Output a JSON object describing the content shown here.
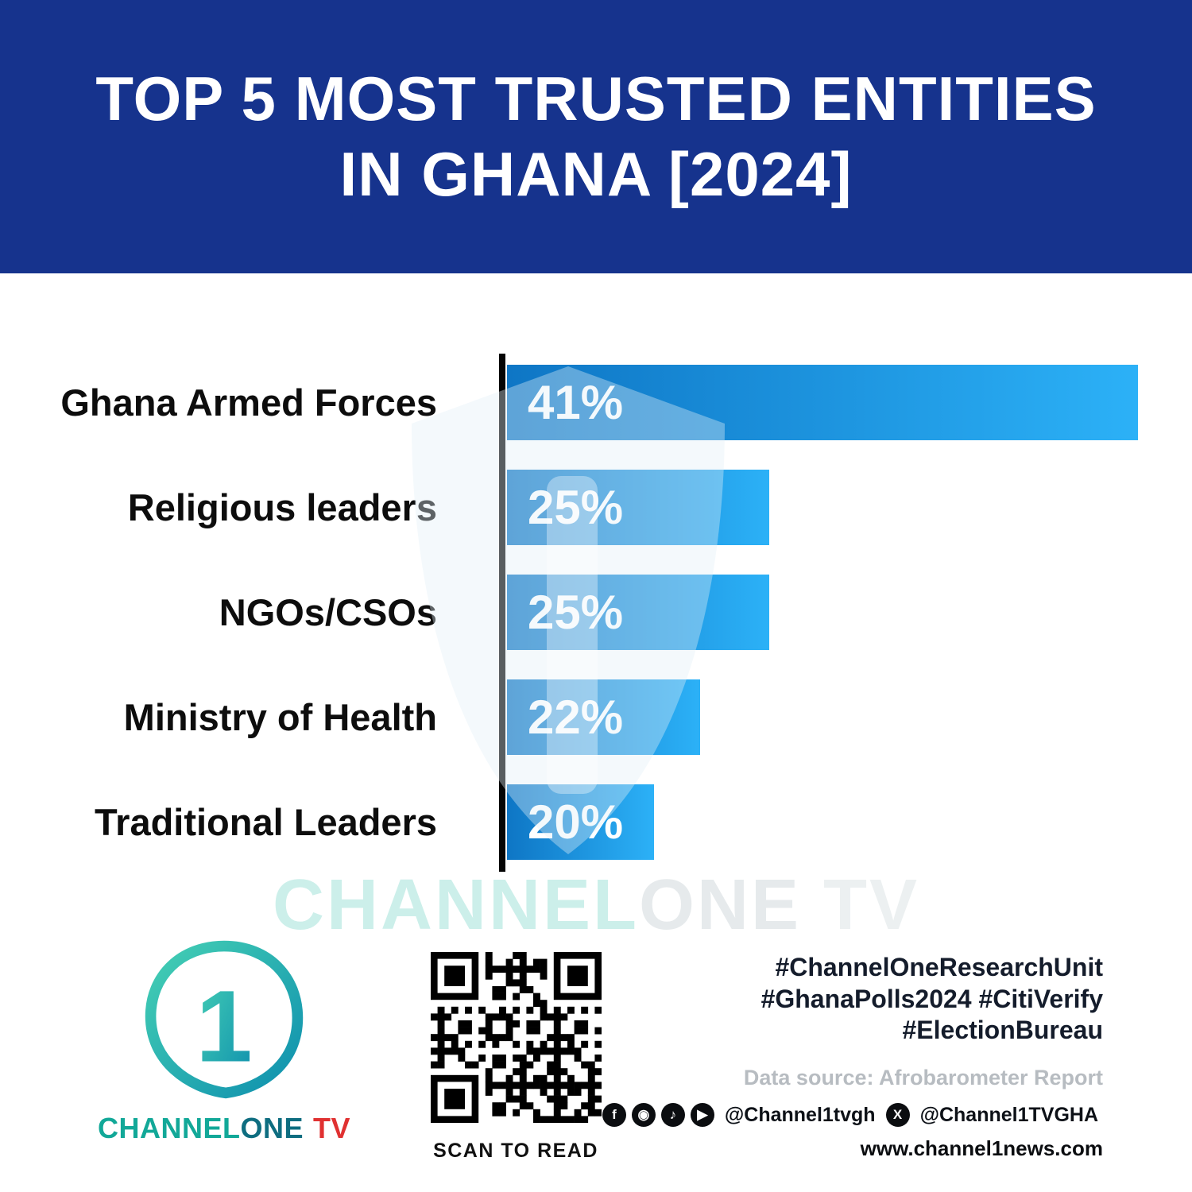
{
  "header": {
    "title_line1": "TOP 5 MOST TRUSTED ENTITIES",
    "title_line2": "IN GHANA [2024]"
  },
  "chart_data": {
    "type": "bar",
    "orientation": "horizontal",
    "title": "TOP 5 MOST TRUSTED ENTITIES IN GHANA [2024]",
    "categories": [
      "Ghana Armed Forces",
      "Religious leaders",
      "NGOs/CSOs",
      "Ministry of Health",
      "Traditional Leaders"
    ],
    "values": [
      41,
      25,
      25,
      22,
      20
    ],
    "value_labels": [
      "41%",
      "25%",
      "25%",
      "22%",
      "20%"
    ],
    "xlabel": "",
    "ylabel": "",
    "xlim": [
      13.6,
      41
    ],
    "grid": false,
    "legend": false,
    "bar_color_start": "#0e76c5",
    "bar_color_end": "#2cb1f7",
    "axis_color": "#050505",
    "source": "Afrobarometer Report"
  },
  "watermark": {
    "part1": "CHANNEL",
    "part2": "ONE",
    "part3": " TV"
  },
  "footer": {
    "logo": {
      "brand_channel": "CHANNEL",
      "brand_one": "ONE",
      "brand_tv": "TV",
      "accent_teal": "#12a898",
      "accent_red": "#e03131"
    },
    "qr_caption": "SCAN TO READ",
    "hashtags": [
      "#ChannelOneResearchUnit",
      "#GhanaPolls2024 #CitiVerify",
      "#ElectionBureau"
    ],
    "data_source": "Data source: Afrobarometer Report",
    "social": {
      "platform_icons": [
        {
          "name": "facebook-icon",
          "glyph": "f"
        },
        {
          "name": "instagram-icon",
          "glyph": "◉"
        },
        {
          "name": "tiktok-icon",
          "glyph": "♪"
        },
        {
          "name": "youtube-icon",
          "glyph": "▶"
        }
      ],
      "x_icon": {
        "name": "x-icon",
        "glyph": "X"
      },
      "handle1": "@Channel1tvgh",
      "handle2": "@Channel1TVGHA"
    },
    "website": "www.channel1news.com"
  }
}
